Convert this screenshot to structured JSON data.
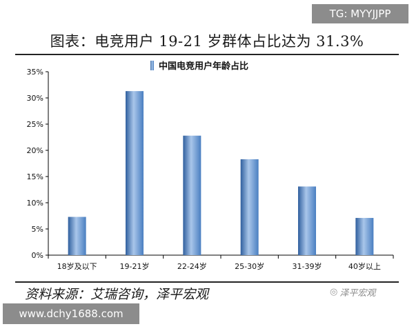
{
  "watermark_top": "TG: MYYJJPP",
  "header_title": "图表：电竞用户 19-21 岁群体占比达为 31.3%",
  "source_text": "资料来源：艾瑞咨询，泽平宏观",
  "brand_text": "泽平宏观",
  "brand_icon": "wechat-icon",
  "watermark_bottom": "www.dchy1688.com",
  "colors": {
    "bar": "#4a7fc1",
    "bar_light": "#a9c6ea",
    "bar_dark": "#2f5f9e",
    "axis": "#000000"
  },
  "chart_data": {
    "type": "bar",
    "legend": "中国电竞用户年龄占比",
    "legend_position": "top",
    "categories": [
      "18岁及以下",
      "19-21岁",
      "22-24岁",
      "25-30岁",
      "31-39岁",
      "40岁以上"
    ],
    "values": [
      7.3,
      31.3,
      22.8,
      18.3,
      13.1,
      7.1
    ],
    "y_ticks": [
      "0%",
      "5%",
      "10%",
      "15%",
      "20%",
      "25%",
      "30%",
      "35%"
    ],
    "ylim": [
      0,
      35
    ],
    "grid": false
  }
}
